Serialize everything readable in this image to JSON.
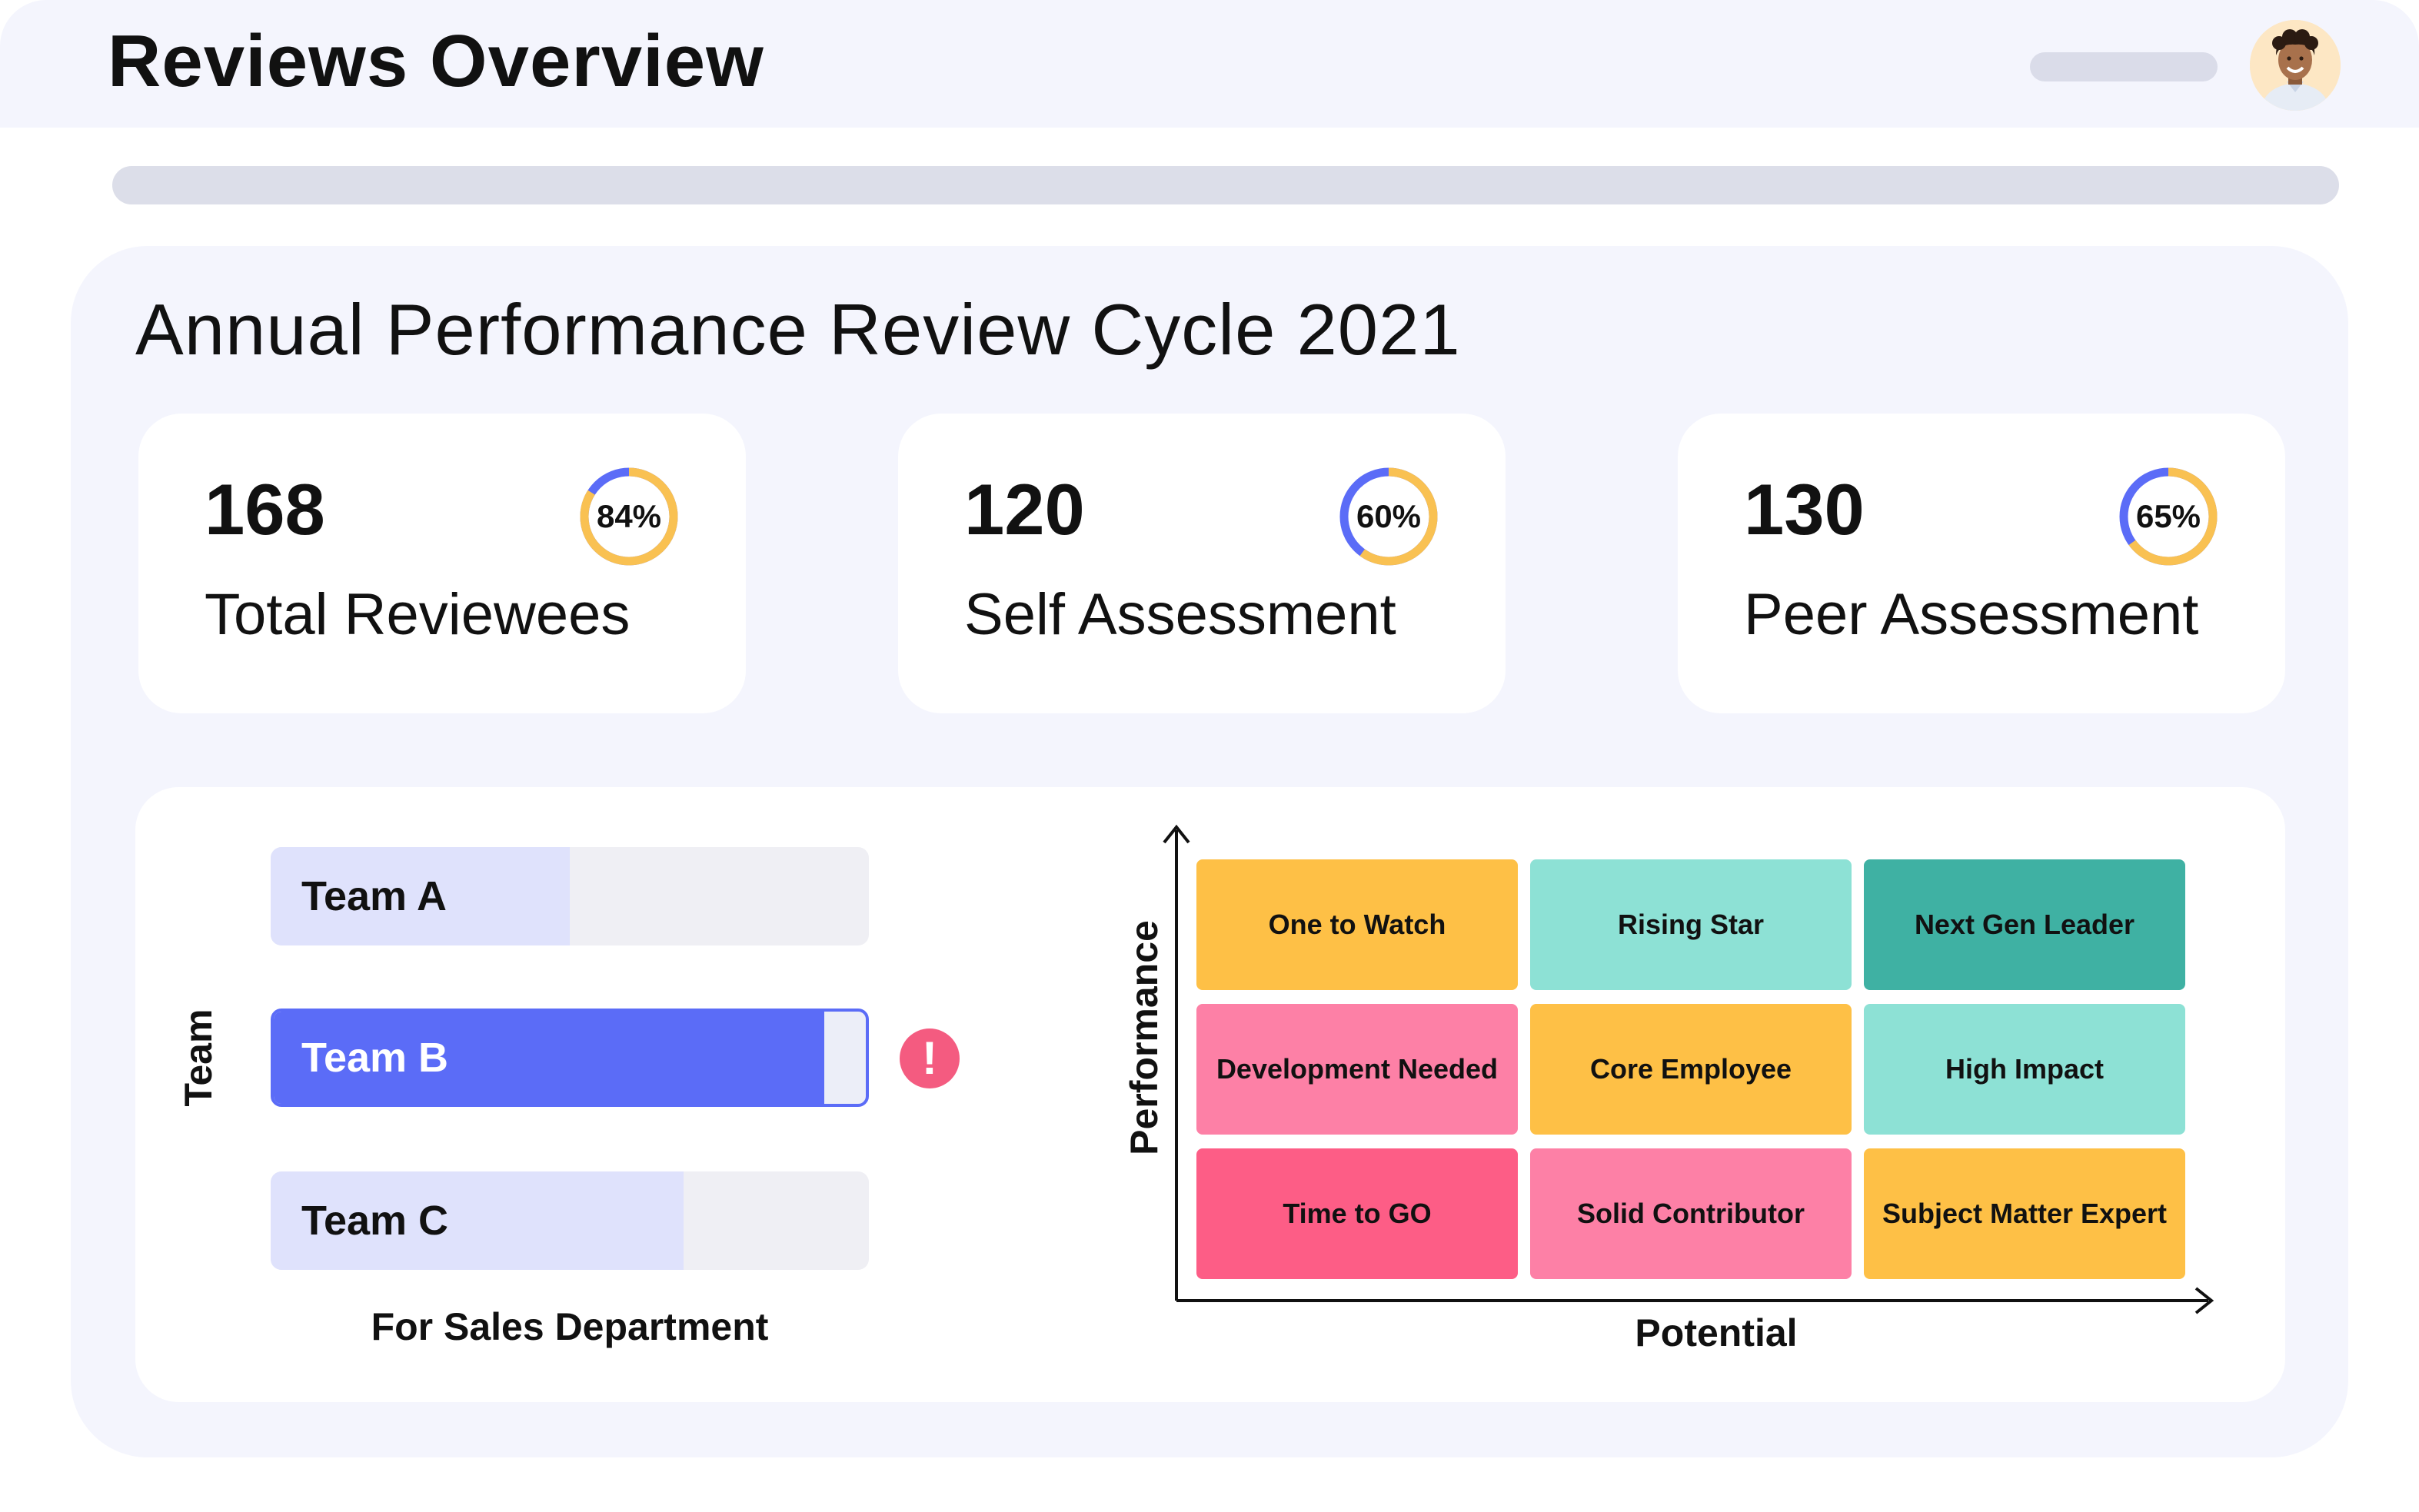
{
  "header": {
    "title": "Reviews Overview"
  },
  "cycle": {
    "title": "Annual Performance Review Cycle 2021"
  },
  "stats": [
    {
      "value": "168",
      "label": "Total Reviewees",
      "percent_label": "84%",
      "percent": 84
    },
    {
      "value": "120",
      "label": "Self Assessment",
      "percent_label": "60%",
      "percent": 60
    },
    {
      "value": "130",
      "label": "Peer Assessment",
      "percent_label": "65%",
      "percent": 65
    }
  ],
  "colors": {
    "ring_progress": "#f9c152",
    "ring_remainder": "#5b6cf7",
    "accent": "#5b6cf7",
    "alert": "#f45b80"
  },
  "teams": {
    "axis_label": "Team",
    "caption": "For Sales Department",
    "items": [
      {
        "label": "Team A",
        "progress": 0.5,
        "selected": false
      },
      {
        "label": "Team B",
        "progress": 0.93,
        "selected": true
      },
      {
        "label": "Team C",
        "progress": 0.69,
        "selected": false
      }
    ],
    "alert_symbol": "!"
  },
  "grid": {
    "y_axis_label": "Performance",
    "x_axis_label": "Potential",
    "cells": [
      {
        "label": "One to Watch",
        "color": "#fec046"
      },
      {
        "label": "Rising Star",
        "color": "#8de1d5"
      },
      {
        "label": "Next Gen Leader",
        "color": "#3fb1a3"
      },
      {
        "label": "Development Needed",
        "color": "#fd80a6"
      },
      {
        "label": "Core Employee",
        "color": "#fec046"
      },
      {
        "label": "High Impact",
        "color": "#8de1d5"
      },
      {
        "label": "Time to GO",
        "color": "#fd5d86"
      },
      {
        "label": "Solid Contributor",
        "color": "#fd80a6"
      },
      {
        "label": "Subject Matter Expert",
        "color": "#fec046"
      }
    ]
  },
  "icons": {
    "avatar": "user-avatar-icon",
    "alert": "exclamation-icon"
  }
}
